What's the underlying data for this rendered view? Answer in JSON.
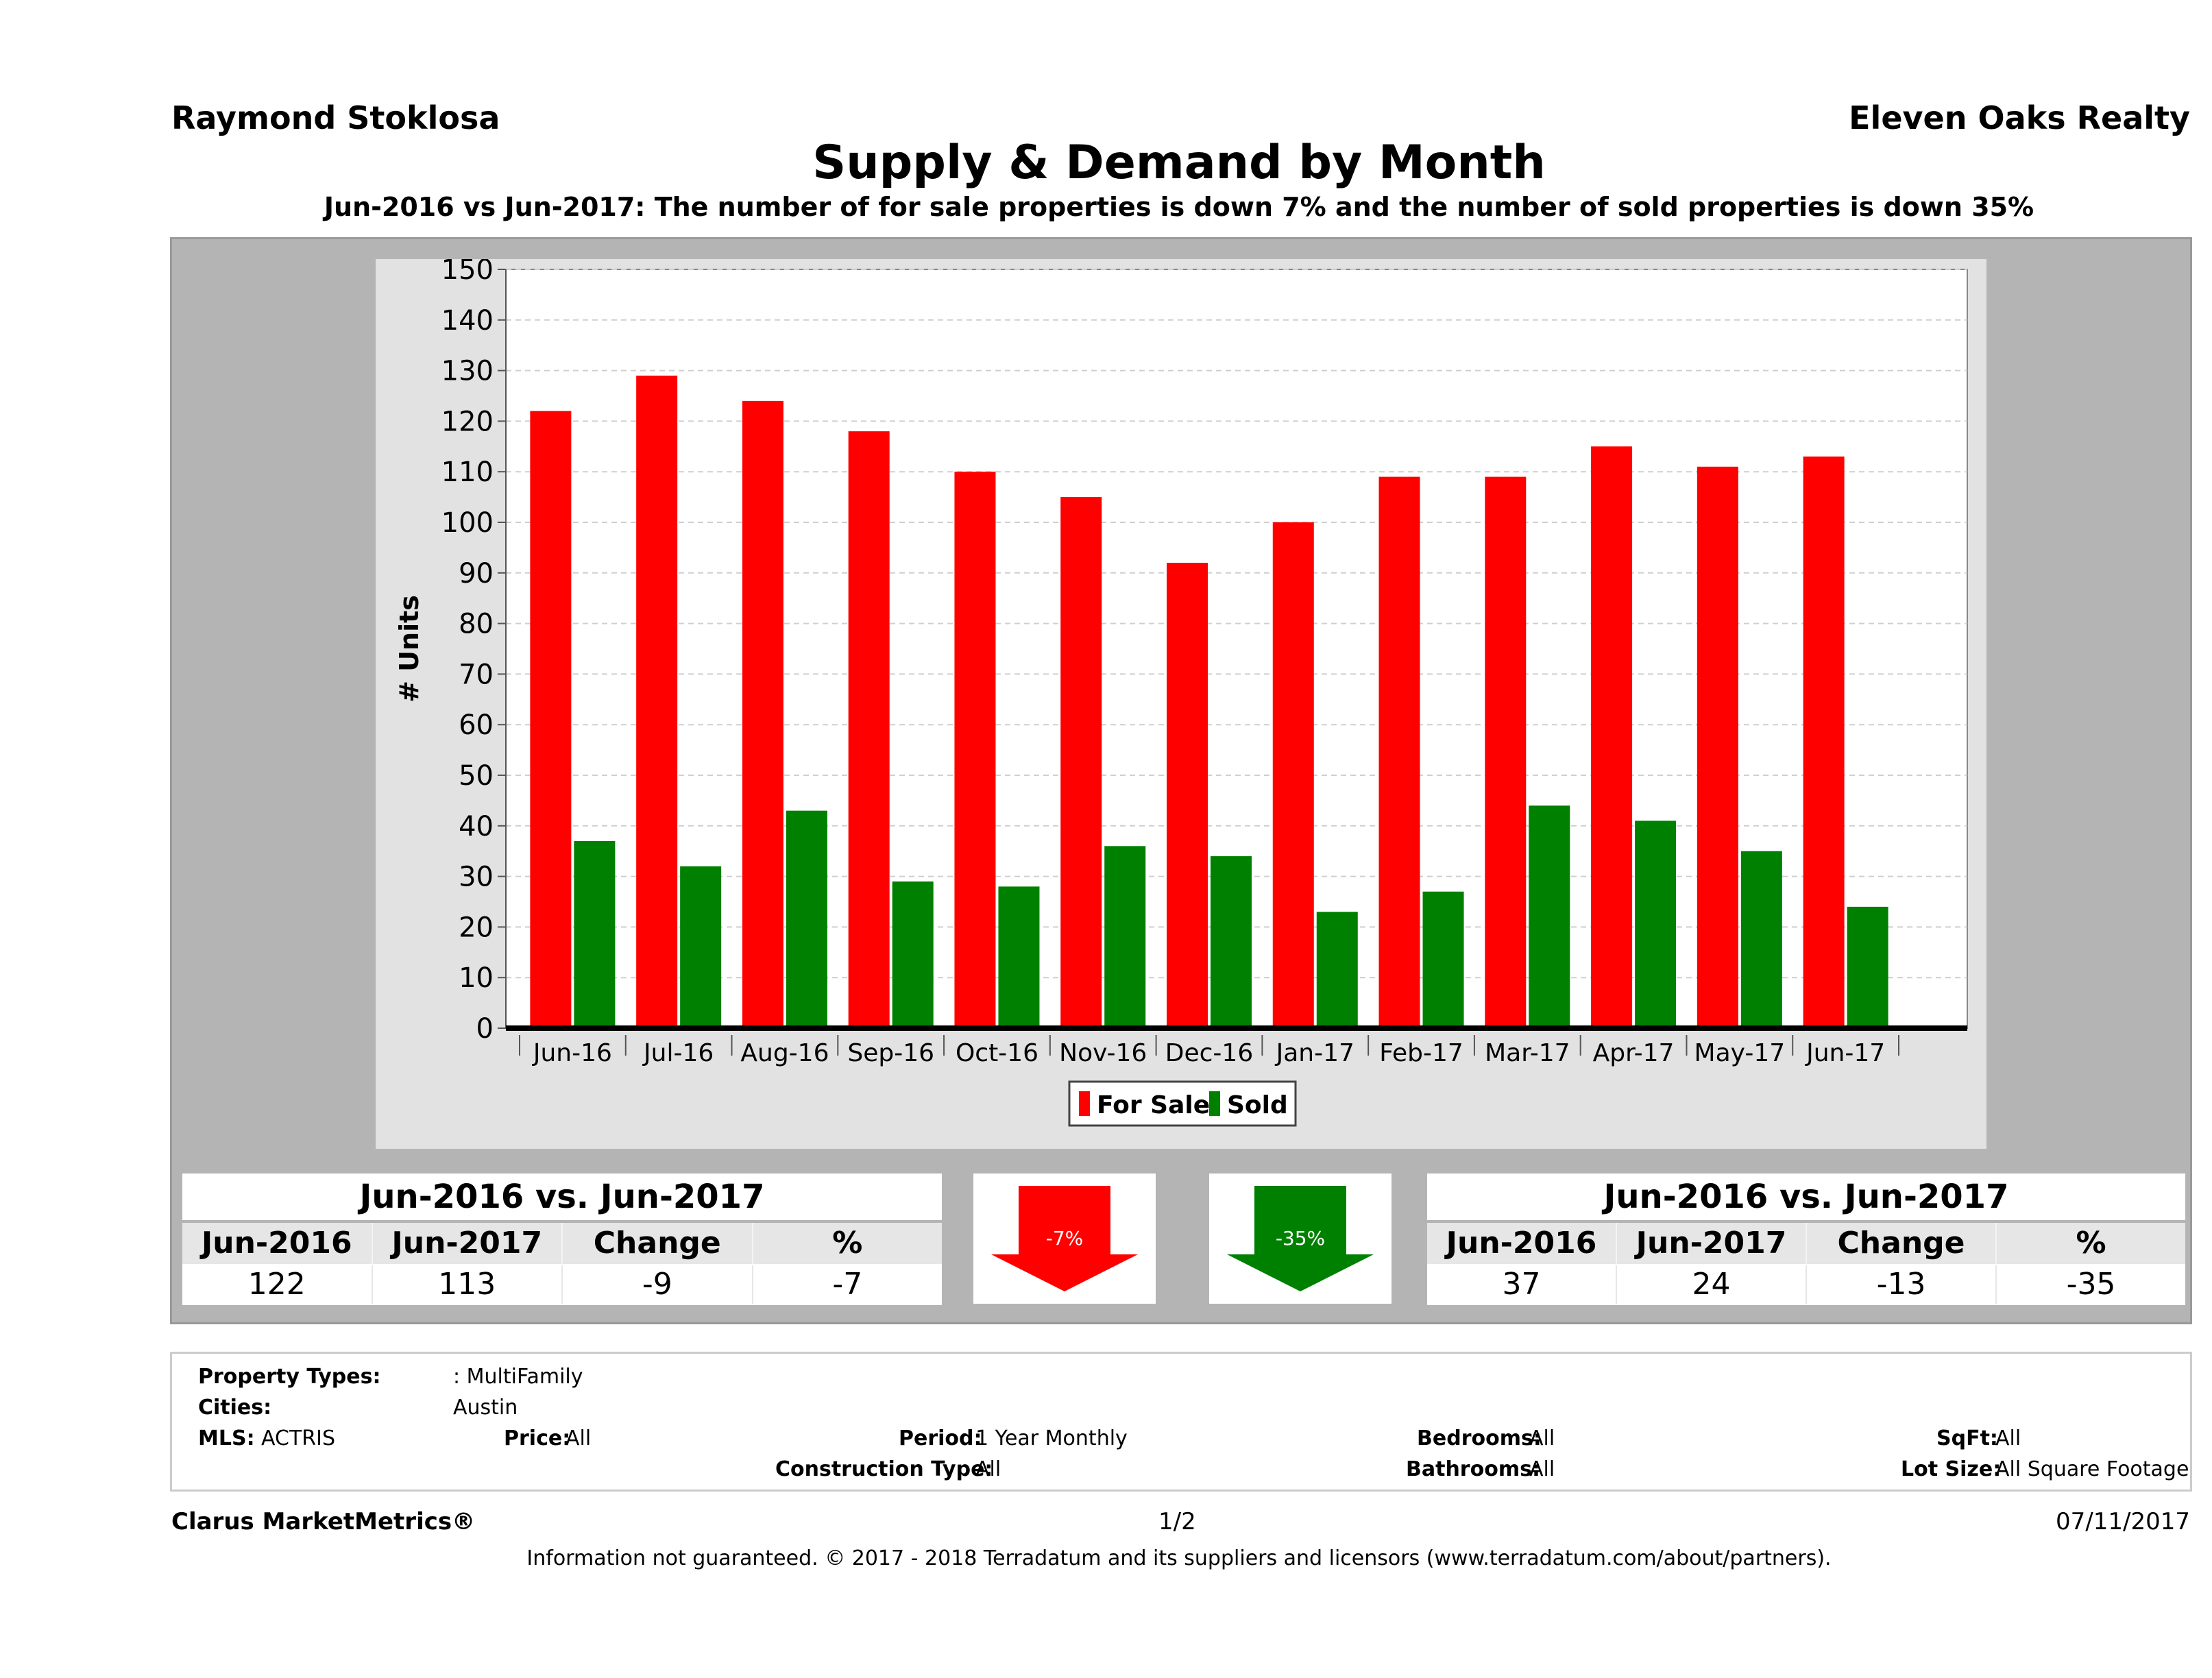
{
  "header": {
    "agent": "Raymond Stoklosa",
    "company": "Eleven Oaks Realty",
    "title": "Supply & Demand by Month",
    "subtitle": "Jun-2016 vs Jun-2017: The number of for sale properties is down 7% and the number of sold properties is down 35%"
  },
  "chart_data": {
    "type": "bar",
    "ylabel": "# Units",
    "xlabel": "",
    "ylim": [
      0,
      150
    ],
    "yticks": [
      0,
      10,
      20,
      30,
      40,
      50,
      60,
      70,
      80,
      90,
      100,
      110,
      120,
      130,
      140,
      150
    ],
    "grid": true,
    "legend_position": "bottom",
    "categories": [
      "Jun-16",
      "Jul-16",
      "Aug-16",
      "Sep-16",
      "Oct-16",
      "Nov-16",
      "Dec-16",
      "Jan-17",
      "Feb-17",
      "Mar-17",
      "Apr-17",
      "May-17",
      "Jun-17"
    ],
    "series": [
      {
        "name": "For Sale",
        "color": "#ff0000",
        "values": [
          122,
          129,
          124,
          118,
          110,
          105,
          92,
          100,
          109,
          109,
          115,
          111,
          113
        ]
      },
      {
        "name": "Sold",
        "color": "#008000",
        "values": [
          37,
          32,
          43,
          29,
          28,
          36,
          34,
          23,
          27,
          44,
          41,
          35,
          24
        ]
      }
    ]
  },
  "for_sale_stats": {
    "title": "Jun-2016 vs. Jun-2017",
    "headers": [
      "Jun-2016",
      "Jun-2017",
      "Change",
      "%"
    ],
    "values": [
      "122",
      "113",
      "-9",
      "-7"
    ],
    "arrow_label": "-7%",
    "arrow_color": "#ff0000"
  },
  "sold_stats": {
    "title": "Jun-2016 vs. Jun-2017",
    "headers": [
      "Jun-2016",
      "Jun-2017",
      "Change",
      "%"
    ],
    "values": [
      "37",
      "24",
      "-13",
      "-35"
    ],
    "arrow_label": "-35%",
    "arrow_color": "#008000"
  },
  "filters": {
    "property_types_label": "Property Types:",
    "property_types_value": ": MultiFamily",
    "cities_label": "Cities:",
    "cities_value": "Austin",
    "mls_label": "MLS:",
    "mls_value": "ACTRIS",
    "price_label": "Price:",
    "price_value": "All",
    "period_label": "Period:",
    "period_value": "1 Year Monthly",
    "construction_label": "Construction Type:",
    "construction_value": "All",
    "bedrooms_label": "Bedrooms:",
    "bedrooms_value": "All",
    "bathrooms_label": "Bathrooms:",
    "bathrooms_value": "All",
    "sqft_label": "SqFt:",
    "sqft_value": "All",
    "lot_label": "Lot Size:",
    "lot_value": "All Square Footage"
  },
  "footer": {
    "brand": "Clarus MarketMetrics®",
    "page": "1/2",
    "date": "07/11/2017",
    "disclaimer": "Information not guaranteed. © 2017 - 2018 Terradatum and its suppliers and licensors (www.terradatum.com/about/partners)."
  }
}
